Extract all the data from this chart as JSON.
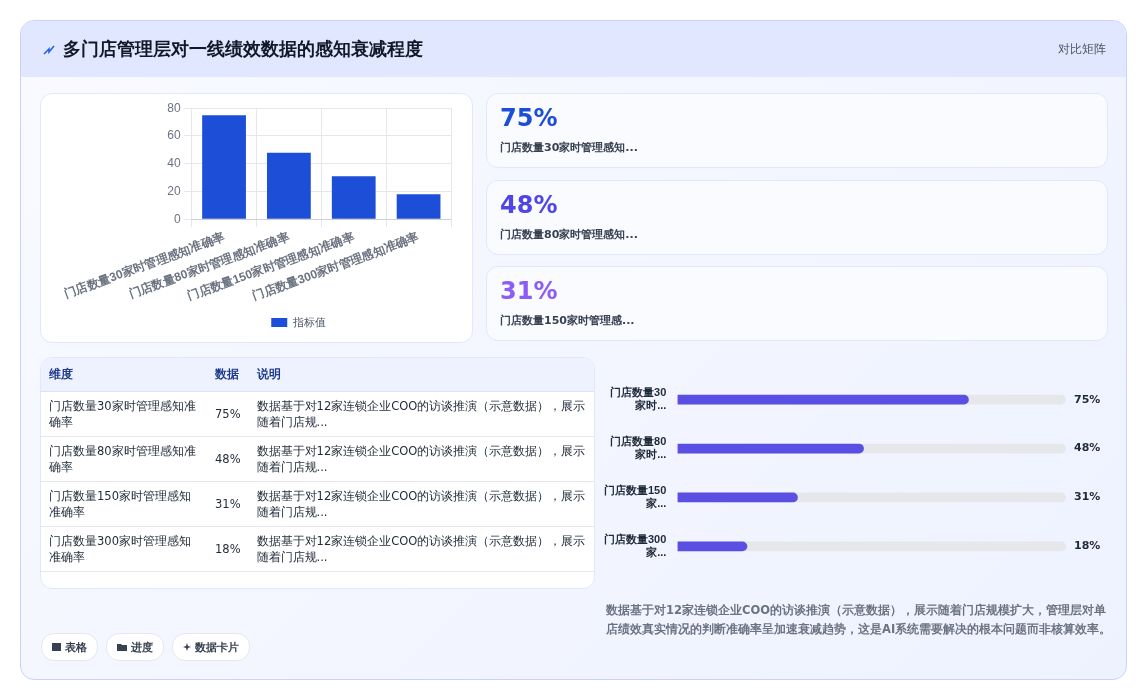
{
  "chart_data": [
    {
      "type": "other",
      "title": "多门店管理层对一线绩效数据的感知衰减程度",
      "subtitle": "对比矩阵"
    },
    {
      "type": "bar",
      "categories": [
        "门店数量30家时管理感知准确率",
        "门店数量80家时管理感知准确率",
        "门店数量150家时管理感知准确率",
        "门店数量300家时管理感知准确率"
      ],
      "series": [
        {
          "name": "指标值",
          "color": "#1d4ed8",
          "values": [
            75,
            48,
            31,
            18
          ]
        }
      ],
      "ylim": [
        0,
        80
      ],
      "yticks": [
        0,
        20,
        40,
        60,
        80
      ],
      "grid": true,
      "legend": "bottom"
    },
    {
      "type": "other",
      "annotations": [
        "75%",
        "门店数量30家时管理感知...",
        "48%",
        "门店数量80家时管理感知...",
        "31%",
        "门店数量150家时管理感..."
      ]
    },
    {
      "type": "other",
      "annotations": [
        "维度",
        "数据",
        "说明",
        "门店数量30家时管理感知准确率",
        "75%",
        "数据基于对12家连锁企业COO的访谈推演（示意数据），展示随着门店规...",
        "门店数量80家时管理感知准确率",
        "48%",
        "数据基于对12家连锁企业COO的访谈推演（示意数据），展示随着门店规...",
        "门店数量150家时管理感知准确率",
        "31%",
        "数据基于对12家连锁企业COO的访谈推演（示意数据），展示随着门店规...",
        "门店数量300家时管理感知准确率",
        "18%",
        "数据基于对12家连锁企业COO的访谈推演（示意数据），展示随着门店规..."
      ]
    },
    {
      "type": "bar",
      "orientation": "horizontal",
      "categories": [
        "门店数量30家时...",
        "门店数量80家时...",
        "门店数量150家...",
        "门店数量300家..."
      ],
      "values": [
        75,
        48,
        31,
        18
      ],
      "value_labels": [
        "75%",
        "48%",
        "31%",
        "18%"
      ],
      "color": "#5b4fe3",
      "xlim": [
        0,
        100
      ],
      "tick_labels": "y"
    },
    {
      "type": "other",
      "annotations": [
        "数据基于对12家连锁企业COO的访谈推演（示意数据），展示随着门店规模扩大，管理层对单店绩效真实情况的判断准确率呈加速衰减趋势，这是AI系统需要解决的根本问题而非核算效率。",
        "表格",
        "进度",
        "数据卡片"
      ]
    }
  ]
}
